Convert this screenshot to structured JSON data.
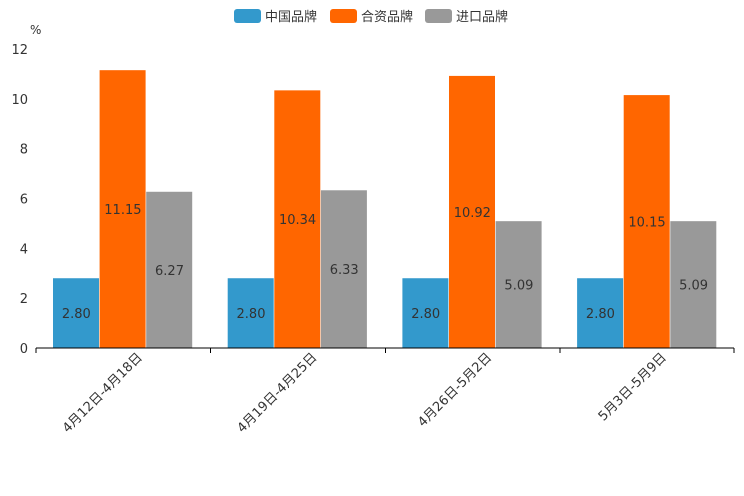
{
  "chart_data": {
    "type": "bar",
    "ylabel": "%",
    "ylim": [
      0,
      12
    ],
    "yticks": [
      0,
      2,
      4,
      6,
      8,
      10,
      12
    ],
    "categories": [
      "4月12日-4月18日",
      "4月19日-4月25日",
      "4月26日-5月2日",
      "5月3日-5月9日"
    ],
    "series": [
      {
        "name": "中国品牌",
        "color": "#3399cc",
        "values": [
          2.8,
          2.8,
          2.8,
          2.8
        ],
        "labels": [
          "2.80",
          "2.80",
          "2.80",
          "2.80"
        ]
      },
      {
        "name": "合资品牌",
        "color": "#ff6600",
        "values": [
          11.15,
          10.34,
          10.92,
          10.15
        ],
        "labels": [
          "11.15",
          "10.34",
          "10.92",
          "10.15"
        ]
      },
      {
        "name": "进口品牌",
        "color": "#999999",
        "values": [
          6.27,
          6.33,
          5.09,
          5.09
        ],
        "labels": [
          "6.27",
          "6.33",
          "5.09",
          "5.09"
        ]
      }
    ],
    "legend": "top-center",
    "grid": false
  }
}
